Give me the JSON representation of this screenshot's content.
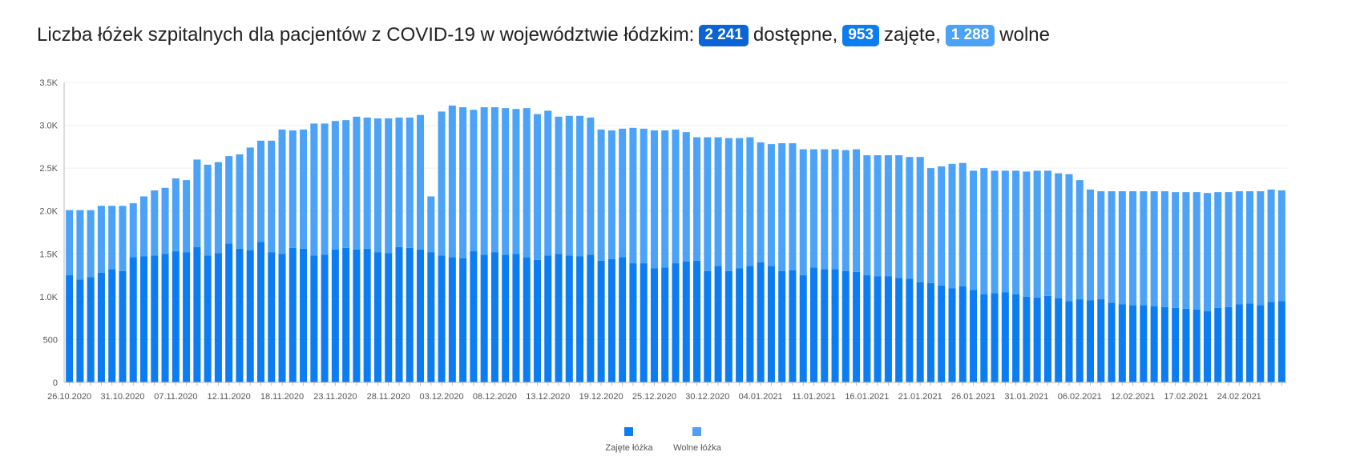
{
  "header": {
    "title_prefix": "Liczba łóżek szpitalnych dla pacjentów z COVID-19 w województwie łódzkim:",
    "available_value": "2 241",
    "available_label": "dostępne,",
    "occupied_value": "953",
    "occupied_label": "zajęte,",
    "free_value": "1 288",
    "free_label": "wolne"
  },
  "colors": {
    "available_badge": "#0a64d6",
    "occupied": "#0c7cf2",
    "free": "#4ba2f7",
    "free_badge": "#4ba2f7",
    "axis": "#bbbbbb",
    "grid": "#f0f0f0"
  },
  "chart_data": {
    "type": "bar",
    "stacked": true,
    "grid": true,
    "legend_position": "bottom",
    "ylim": [
      0,
      3500
    ],
    "yticks": [
      "0",
      "500",
      "1.0K",
      "1.5K",
      "2.0K",
      "2.5K",
      "3.0K",
      "3.5K"
    ],
    "ytick_values": [
      0,
      500,
      1000,
      1500,
      2000,
      2500,
      3000,
      3500
    ],
    "xtick_labels": [
      {
        "label": "26.10.2020",
        "index": 0
      },
      {
        "label": "31.10.2020",
        "index": 5
      },
      {
        "label": "07.11.2020",
        "index": 10
      },
      {
        "label": "12.11.2020",
        "index": 15
      },
      {
        "label": "18.11.2020",
        "index": 20
      },
      {
        "label": "23.11.2020",
        "index": 25
      },
      {
        "label": "28.11.2020",
        "index": 30
      },
      {
        "label": "03.12.2020",
        "index": 35
      },
      {
        "label": "08.12.2020",
        "index": 40
      },
      {
        "label": "13.12.2020",
        "index": 45
      },
      {
        "label": "19.12.2020",
        "index": 50
      },
      {
        "label": "25.12.2020",
        "index": 55
      },
      {
        "label": "30.12.2020",
        "index": 60
      },
      {
        "label": "04.01.2021",
        "index": 65
      },
      {
        "label": "11.01.2021",
        "index": 70
      },
      {
        "label": "16.01.2021",
        "index": 75
      },
      {
        "label": "21.01.2021",
        "index": 80
      },
      {
        "label": "26.01.2021",
        "index": 85
      },
      {
        "label": "31.01.2021",
        "index": 90
      },
      {
        "label": "06.02.2021",
        "index": 95
      },
      {
        "label": "12.02.2021",
        "index": 100
      },
      {
        "label": "17.02.2021",
        "index": 105
      },
      {
        "label": "24.02.2021",
        "index": 110
      }
    ],
    "series": [
      {
        "name": "Zajęte łóżka",
        "color": "#0c7cf2",
        "values": [
          1250,
          1200,
          1230,
          1280,
          1320,
          1300,
          1460,
          1470,
          1480,
          1500,
          1530,
          1520,
          1580,
          1480,
          1510,
          1620,
          1560,
          1540,
          1640,
          1520,
          1500,
          1570,
          1560,
          1480,
          1490,
          1550,
          1570,
          1550,
          1560,
          1520,
          1510,
          1580,
          1570,
          1550,
          1520,
          1480,
          1460,
          1450,
          1530,
          1490,
          1520,
          1490,
          1500,
          1460,
          1430,
          1480,
          1500,
          1480,
          1470,
          1490,
          1420,
          1440,
          1460,
          1390,
          1390,
          1330,
          1340,
          1390,
          1410,
          1420,
          1300,
          1360,
          1300,
          1330,
          1360,
          1400,
          1360,
          1300,
          1310,
          1250,
          1340,
          1320,
          1320,
          1300,
          1290,
          1250,
          1240,
          1240,
          1220,
          1210,
          1170,
          1160,
          1130,
          1100,
          1120,
          1080,
          1030,
          1040,
          1050,
          1030,
          1000,
          990,
          1010,
          980,
          950,
          970,
          960,
          970,
          930,
          910,
          900,
          900,
          890,
          880,
          870,
          860,
          850,
          830,
          870,
          880,
          910,
          920,
          900,
          940,
          950
        ]
      },
      {
        "name": "Wolne łóżka",
        "color": "#4ba2f7",
        "values": [
          760,
          810,
          780,
          780,
          740,
          760,
          630,
          700,
          760,
          770,
          850,
          840,
          1020,
          1060,
          1060,
          1020,
          1100,
          1200,
          1180,
          1300,
          1450,
          1370,
          1390,
          1540,
          1530,
          1500,
          1490,
          1550,
          1530,
          1560,
          1570,
          1510,
          1520,
          1570,
          650,
          1680,
          1770,
          1760,
          1650,
          1720,
          1690,
          1710,
          1690,
          1740,
          1700,
          1690,
          1600,
          1630,
          1640,
          1600,
          1530,
          1500,
          1500,
          1580,
          1570,
          1610,
          1600,
          1560,
          1510,
          1440,
          1560,
          1500,
          1550,
          1520,
          1500,
          1400,
          1420,
          1490,
          1480,
          1470,
          1380,
          1400,
          1400,
          1410,
          1430,
          1400,
          1410,
          1410,
          1430,
          1420,
          1460,
          1340,
          1390,
          1450,
          1440,
          1390,
          1470,
          1430,
          1420,
          1440,
          1460,
          1480,
          1460,
          1460,
          1480,
          1390,
          1290,
          1260,
          1300,
          1320,
          1330,
          1330,
          1340,
          1350,
          1350,
          1360,
          1370,
          1380,
          1350,
          1340,
          1320,
          1310,
          1330,
          1310,
          1290
        ]
      }
    ],
    "legend": [
      "Zajęte łóżka",
      "Wolne łóżka"
    ]
  }
}
